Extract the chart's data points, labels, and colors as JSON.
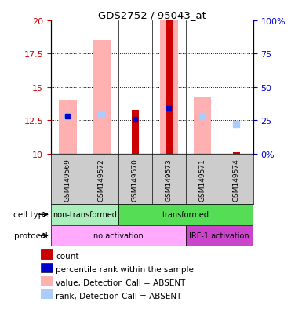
{
  "title": "GDS2752 / 95043_at",
  "samples": [
    "GSM149569",
    "GSM149572",
    "GSM149570",
    "GSM149573",
    "GSM149571",
    "GSM149574"
  ],
  "ylim_left": [
    10,
    20
  ],
  "ylim_right": [
    0,
    100
  ],
  "yticks_left": [
    10,
    12.5,
    15,
    17.5,
    20
  ],
  "yticks_right": [
    0,
    25,
    50,
    75,
    100
  ],
  "ytick_labels_left": [
    "10",
    "12.5",
    "15",
    "17.5",
    "20"
  ],
  "ytick_labels_right": [
    "0%",
    "25",
    "50",
    "75",
    "100%"
  ],
  "pink_bar_tops": [
    14.0,
    18.5,
    10.0,
    20.0,
    14.2,
    10.0
  ],
  "light_blue_vals": [
    12.8,
    13.0,
    0.0,
    0.0,
    12.8,
    12.2
  ],
  "light_blue_on": [
    true,
    true,
    false,
    false,
    true,
    true
  ],
  "red_bar_tops": [
    10.0,
    10.0,
    13.3,
    20.0,
    10.0,
    10.1
  ],
  "blue_sq_vals": [
    12.8,
    0.0,
    12.6,
    13.4,
    0.0,
    0.0
  ],
  "blue_sq_on": [
    true,
    false,
    true,
    true,
    false,
    false
  ],
  "cell_type_groups": [
    {
      "label": "non-transformed",
      "start": 0,
      "end": 2,
      "color": "#aaeebb"
    },
    {
      "label": "transformed",
      "start": 2,
      "end": 6,
      "color": "#55dd55"
    }
  ],
  "protocol_groups": [
    {
      "label": "no activation",
      "start": 0,
      "end": 4,
      "color": "#ffaaff"
    },
    {
      "label": "IRF-1 activation",
      "start": 4,
      "end": 6,
      "color": "#cc44cc"
    }
  ],
  "legend_colors": [
    "#cc0000",
    "#0000cc",
    "#ffb0b0",
    "#aaccff"
  ],
  "legend_labels": [
    "count",
    "percentile rank within the sample",
    "value, Detection Call = ABSENT",
    "rank, Detection Call = ABSENT"
  ],
  "left_axis_color": "#cc0000",
  "right_axis_color": "#0000cc",
  "pink_bar_width": 0.52,
  "red_bar_width": 0.22
}
